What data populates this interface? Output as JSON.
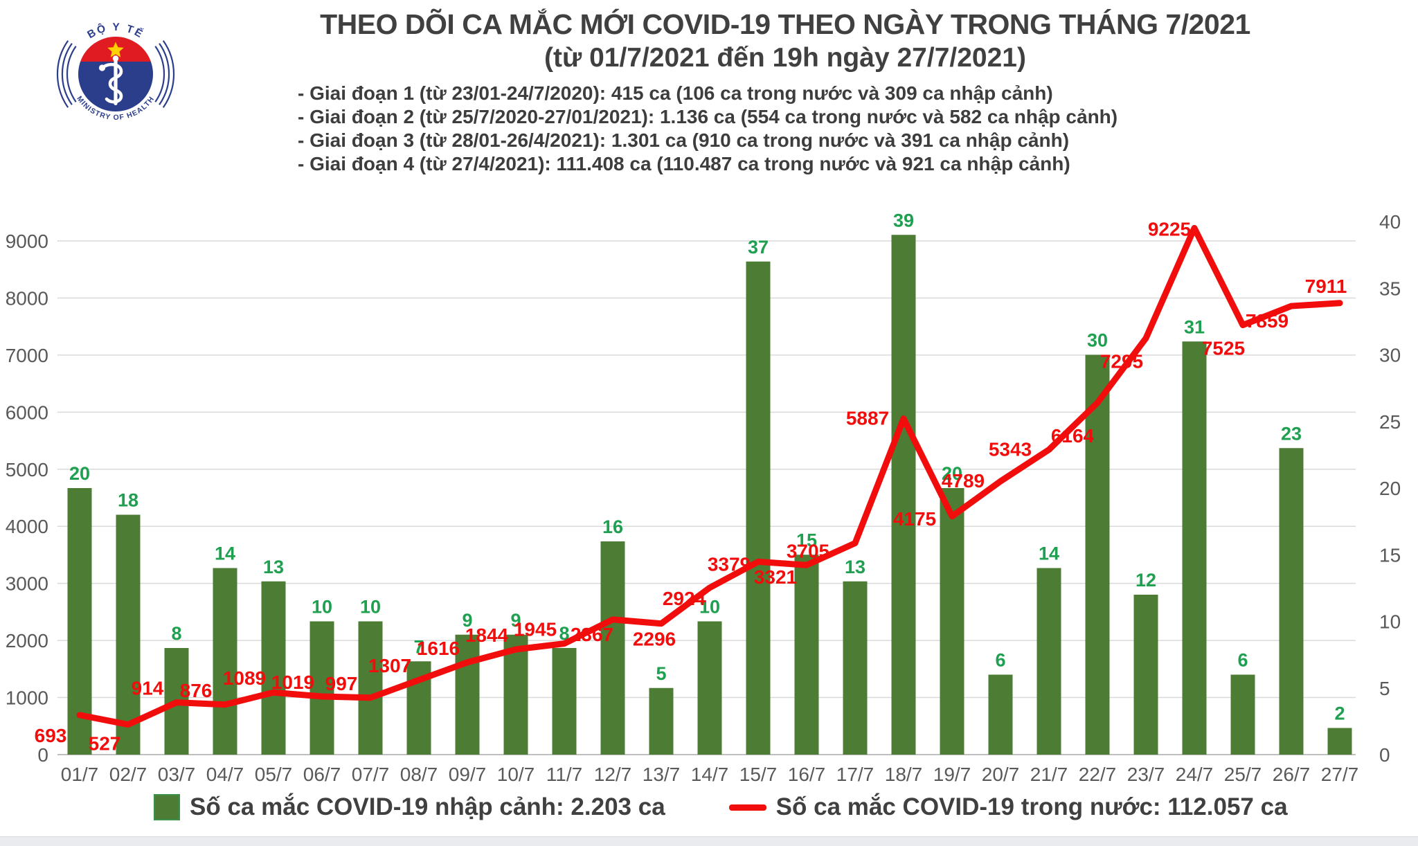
{
  "logo": {
    "top_text": "BỘ Y TẾ",
    "bottom_text": "MINISTRY OF HEALTH"
  },
  "header": {
    "title": "THEO DÕI CA MẮC MỚI COVID-19 THEO NGÀY TRONG THÁNG 7/2021",
    "subtitle": "(từ 01/7/2021 đến 19h ngày 27/7/2021)",
    "phases": [
      "- Giai đoạn 1 (từ 23/01-24/7/2020): 415 ca (106 ca trong nước và 309 ca nhập cảnh)",
      "- Giai đoạn 2 (từ 25/7/2020-27/01/2021): 1.136 ca (554 ca trong nước và 582 ca nhập cảnh)",
      "- Giai đoạn 3 (từ 28/01-26/4/2021): 1.301 ca (910 ca trong nước và 391 ca nhập cảnh)",
      "- Giai đoạn 4 (từ 27/4/2021): 111.408 ca (110.487 ca trong nước và 921 ca nhập cảnh)"
    ]
  },
  "chart_data": {
    "type": "bar+line (dual axis)",
    "categories": [
      "01/7",
      "02/7",
      "03/7",
      "04/7",
      "05/7",
      "06/7",
      "07/7",
      "08/7",
      "09/7",
      "10/7",
      "11/7",
      "12/7",
      "13/7",
      "14/7",
      "15/7",
      "16/7",
      "17/7",
      "18/7",
      "19/7",
      "20/7",
      "21/7",
      "22/7",
      "23/7",
      "24/7",
      "25/7",
      "26/7",
      "27/7"
    ],
    "series": [
      {
        "name": "Số ca mắc COVID-19 nhập cảnh",
        "type": "bar",
        "axis": "right",
        "color": "#4d7c34",
        "label_color": "#1fa050",
        "values": [
          20,
          18,
          8,
          14,
          13,
          10,
          10,
          7,
          9,
          9,
          8,
          16,
          5,
          10,
          37,
          15,
          13,
          39,
          20,
          6,
          14,
          30,
          12,
          31,
          6,
          23,
          2
        ]
      },
      {
        "name": "Số ca mắc COVID-19 trong nước",
        "type": "line",
        "axis": "left",
        "color": "#f20d0d",
        "label_color": "#f20d0d",
        "values": [
          693,
          527,
          914,
          876,
          1089,
          1019,
          997,
          1307,
          1616,
          1844,
          1945,
          2367,
          2296,
          2924,
          3379,
          3321,
          3705,
          5887,
          4175,
          4789,
          5343,
          6164,
          7295,
          9225,
          7525,
          7859,
          7911
        ]
      }
    ],
    "left_axis": {
      "min": 0,
      "max": 9000,
      "step": 1000,
      "ticks": [
        0,
        1000,
        2000,
        3000,
        4000,
        5000,
        6000,
        7000,
        8000,
        9000
      ]
    },
    "right_axis": {
      "min": 0,
      "max": 40,
      "step": 5,
      "ticks": [
        0,
        5,
        10,
        15,
        20,
        25,
        30,
        35,
        40
      ]
    },
    "grid": true,
    "legend_position": "bottom"
  },
  "legend": {
    "bar_label": "Số ca mắc COVID-19 nhập cảnh: 2.203 ca",
    "line_label": "Số ca mắc COVID-19 trong nước: 112.057 ca"
  },
  "colors": {
    "bar_fill": "#4d7c34",
    "bar_label_green": "#1fa050",
    "line_red": "#f20d0d",
    "title_gray": "#404040",
    "axis_gray": "#595959",
    "gridline": "#d9d9d9",
    "logo_blue": "#2b3e8c",
    "logo_red": "#e01b22",
    "logo_star_yellow": "#ffd100"
  }
}
